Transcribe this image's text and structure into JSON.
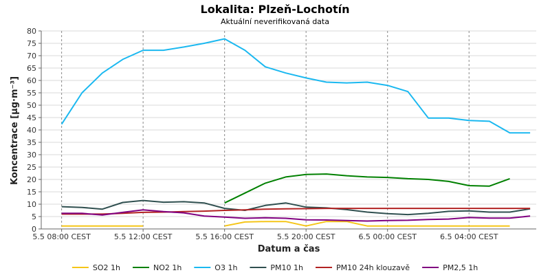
{
  "chart_data": {
    "type": "line",
    "title": "Lokalita: Plzeň-Lochotín",
    "subtitle": "Aktuální neverifikovaná data",
    "xlabel": "Datum a čas",
    "ylabel": "Koncentrace [µg·m⁻³]",
    "ylim": [
      0,
      80
    ],
    "y_ticks": [
      "0",
      "5",
      "10",
      "15",
      "20",
      "25",
      "30",
      "35",
      "40",
      "45",
      "50",
      "55",
      "60",
      "65",
      "70",
      "75",
      "80"
    ],
    "x_tick_labels": [
      "5.5 08:00 CEST",
      "5.5 12:00 CEST",
      "5.5 16:00 CEST",
      "5.5 20:00 CEST",
      "6.5 00:00 CEST",
      "6.5 04:00 CEST"
    ],
    "x_tick_indices": [
      0,
      4,
      8,
      12,
      16,
      20
    ],
    "x_range": [
      -1,
      23.3
    ],
    "grid": true,
    "legend_position": "bottom",
    "series": [
      {
        "name": "SO2 1h",
        "color": "#f5c518",
        "values": [
          1.2,
          1.2,
          1.2,
          1.2,
          1.2,
          null,
          null,
          null,
          1.2,
          2.8,
          3.0,
          3.0,
          1.2,
          3.0,
          3.0,
          1.2,
          1.2,
          1.2,
          1.2,
          1.2,
          1.2,
          1.2,
          1.2
        ]
      },
      {
        "name": "NO2 1h",
        "color": "#008000",
        "values": [
          null,
          null,
          null,
          null,
          null,
          null,
          null,
          null,
          10.5,
          14.5,
          18.5,
          21.0,
          22.0,
          22.2,
          21.5,
          21.0,
          20.8,
          20.3,
          20.0,
          19.2,
          17.5,
          17.3,
          20.3
        ]
      },
      {
        "name": "O3 1h",
        "color": "#1ab8f0",
        "values": [
          42.3,
          55.0,
          63.0,
          68.5,
          72.2,
          72.2,
          73.5,
          75.0,
          76.8,
          72.2,
          65.5,
          63.0,
          61.0,
          59.3,
          59.0,
          59.3,
          58.0,
          55.5,
          44.8,
          44.8,
          43.8,
          43.5,
          38.8,
          38.8
        ]
      },
      {
        "name": "PM10 1h",
        "color": "#2f4f4f",
        "values": [
          9.0,
          8.7,
          8.0,
          10.7,
          11.5,
          10.8,
          11.0,
          10.5,
          8.3,
          7.5,
          9.5,
          10.5,
          8.8,
          8.5,
          7.8,
          6.8,
          6.2,
          5.8,
          6.3,
          7.1,
          7.3,
          6.8,
          6.8,
          8.1
        ]
      },
      {
        "name": "PM10 24h klouzavě",
        "color": "#b22222",
        "values": [
          6.0,
          6.0,
          6.0,
          6.3,
          6.7,
          6.8,
          7.0,
          7.2,
          7.5,
          7.7,
          8.0,
          8.1,
          8.2,
          8.3,
          8.3,
          8.3,
          8.3,
          8.3,
          8.3,
          8.3,
          8.3,
          8.3,
          8.3,
          8.3
        ]
      },
      {
        "name": "PM2,5 1h",
        "color": "#800080",
        "values": [
          6.3,
          6.3,
          5.6,
          6.7,
          7.7,
          7.0,
          6.5,
          5.2,
          4.8,
          4.3,
          4.5,
          4.3,
          3.7,
          3.6,
          3.4,
          3.2,
          3.4,
          3.5,
          3.8,
          4.0,
          4.6,
          4.4,
          4.4,
          5.2
        ]
      }
    ]
  }
}
